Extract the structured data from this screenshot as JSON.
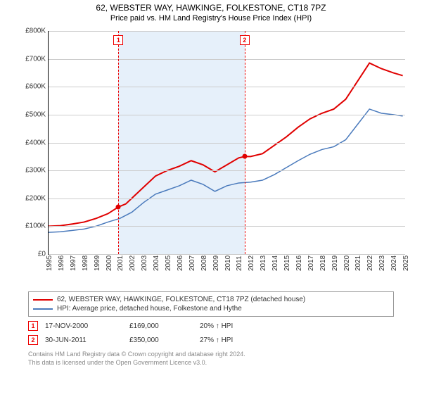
{
  "title": "62, WEBSTER WAY, HAWKINGE, FOLKESTONE, CT18 7PZ",
  "subtitle": "Price paid vs. HM Land Registry's House Price Index (HPI)",
  "chart": {
    "type": "line",
    "x_start_year": 1995,
    "x_end_year": 2025,
    "x_ticks": [
      1995,
      1996,
      1997,
      1998,
      1999,
      2000,
      2001,
      2002,
      2003,
      2004,
      2005,
      2006,
      2007,
      2008,
      2009,
      2010,
      2011,
      2012,
      2013,
      2014,
      2015,
      2016,
      2017,
      2018,
      2019,
      2020,
      2021,
      2022,
      2023,
      2024,
      2025
    ],
    "y_min": 0,
    "y_max": 800000,
    "y_ticks": [
      0,
      100000,
      200000,
      300000,
      400000,
      500000,
      600000,
      700000,
      800000
    ],
    "y_tick_labels": [
      "£0",
      "£100K",
      "£200K",
      "£300K",
      "£400K",
      "£500K",
      "£600K",
      "£700K",
      "£800K"
    ],
    "grid_color": "#cccccc",
    "band_color": "#e6f0fa",
    "band_start": 2000.88,
    "band_end": 2011.5,
    "series": [
      {
        "name": "property",
        "color": "#e00000",
        "width": 2,
        "points": [
          [
            1995,
            100000
          ],
          [
            1996,
            102000
          ],
          [
            1997,
            108000
          ],
          [
            1998,
            115000
          ],
          [
            1999,
            128000
          ],
          [
            2000,
            145000
          ],
          [
            2000.88,
            169000
          ],
          [
            2001.5,
            180000
          ],
          [
            2002,
            200000
          ],
          [
            2003,
            240000
          ],
          [
            2004,
            280000
          ],
          [
            2005,
            300000
          ],
          [
            2006,
            315000
          ],
          [
            2007,
            335000
          ],
          [
            2008,
            320000
          ],
          [
            2009,
            295000
          ],
          [
            2010,
            320000
          ],
          [
            2011,
            345000
          ],
          [
            2011.5,
            350000
          ],
          [
            2012,
            350000
          ],
          [
            2013,
            360000
          ],
          [
            2014,
            390000
          ],
          [
            2015,
            420000
          ],
          [
            2016,
            455000
          ],
          [
            2017,
            485000
          ],
          [
            2018,
            505000
          ],
          [
            2019,
            520000
          ],
          [
            2020,
            555000
          ],
          [
            2021,
            620000
          ],
          [
            2022,
            685000
          ],
          [
            2023,
            665000
          ],
          [
            2024,
            650000
          ],
          [
            2024.8,
            640000
          ]
        ]
      },
      {
        "name": "hpi",
        "color": "#4a7abc",
        "width": 1.5,
        "points": [
          [
            1995,
            78000
          ],
          [
            1996,
            80000
          ],
          [
            1997,
            85000
          ],
          [
            1998,
            90000
          ],
          [
            1999,
            100000
          ],
          [
            2000,
            115000
          ],
          [
            2001,
            128000
          ],
          [
            2002,
            150000
          ],
          [
            2003,
            185000
          ],
          [
            2004,
            215000
          ],
          [
            2005,
            230000
          ],
          [
            2006,
            245000
          ],
          [
            2007,
            265000
          ],
          [
            2008,
            250000
          ],
          [
            2009,
            225000
          ],
          [
            2010,
            245000
          ],
          [
            2011,
            255000
          ],
          [
            2012,
            258000
          ],
          [
            2013,
            265000
          ],
          [
            2014,
            285000
          ],
          [
            2015,
            310000
          ],
          [
            2016,
            335000
          ],
          [
            2017,
            358000
          ],
          [
            2018,
            375000
          ],
          [
            2019,
            385000
          ],
          [
            2020,
            410000
          ],
          [
            2021,
            465000
          ],
          [
            2022,
            520000
          ],
          [
            2023,
            505000
          ],
          [
            2024,
            500000
          ],
          [
            2024.8,
            495000
          ]
        ]
      }
    ],
    "markers": [
      {
        "id": "1",
        "x": 2000.88,
        "y": 169000,
        "dot_color": "#e00000"
      },
      {
        "id": "2",
        "x": 2011.5,
        "y": 350000,
        "dot_color": "#e00000"
      }
    ]
  },
  "legend": [
    {
      "color": "#e00000",
      "label": "62, WEBSTER WAY, HAWKINGE, FOLKESTONE, CT18 7PZ (detached house)"
    },
    {
      "color": "#4a7abc",
      "label": "HPI: Average price, detached house, Folkestone and Hythe"
    }
  ],
  "transactions": [
    {
      "id": "1",
      "date": "17-NOV-2000",
      "price": "£169,000",
      "pct": "20% ↑ HPI"
    },
    {
      "id": "2",
      "date": "30-JUN-2011",
      "price": "£350,000",
      "pct": "27% ↑ HPI"
    }
  ],
  "footer_line1": "Contains HM Land Registry data © Crown copyright and database right 2024.",
  "footer_line2": "This data is licensed under the Open Government Licence v3.0."
}
